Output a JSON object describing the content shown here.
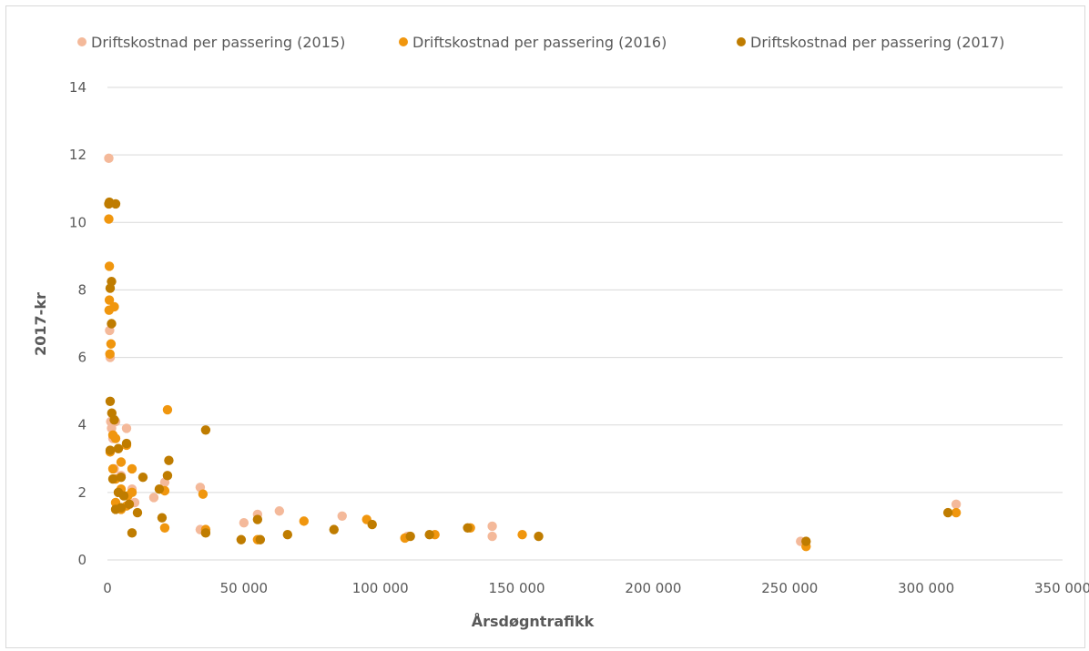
{
  "chart_data": {
    "type": "scatter",
    "xlabel": "Årsdøgntrafikk",
    "ylabel": "2017-kr",
    "xlim": [
      0,
      350000
    ],
    "ylim": [
      0,
      14
    ],
    "x_ticks": [
      0,
      50000,
      100000,
      150000,
      200000,
      250000,
      300000,
      350000
    ],
    "x_tick_labels": [
      "0",
      "50 000",
      "100 000",
      "150 000",
      "200 000",
      "250 000",
      "300 000",
      "350 000"
    ],
    "y_ticks": [
      0,
      2,
      4,
      6,
      8,
      10,
      12,
      14
    ],
    "y_tick_labels": [
      "0",
      "2",
      "4",
      "6",
      "8",
      "10",
      "12",
      "14"
    ],
    "grid": "horizontal",
    "legend_position": "top",
    "series": [
      {
        "name": "Driftskostnad per passering (2015)",
        "color": "#f4b99a",
        "points": [
          [
            500,
            11.9
          ],
          [
            800,
            6.8
          ],
          [
            1000,
            6.0
          ],
          [
            1200,
            4.1
          ],
          [
            1500,
            3.9
          ],
          [
            2000,
            3.6
          ],
          [
            3000,
            4.1
          ],
          [
            4000,
            3.3
          ],
          [
            7000,
            3.9
          ],
          [
            2500,
            2.7
          ],
          [
            5000,
            2.5
          ],
          [
            9000,
            2.1
          ],
          [
            10000,
            1.7
          ],
          [
            17000,
            1.85
          ],
          [
            21000,
            2.3
          ],
          [
            34000,
            2.15
          ],
          [
            34000,
            0.9
          ],
          [
            50000,
            1.1
          ],
          [
            55000,
            1.35
          ],
          [
            63000,
            1.45
          ],
          [
            86000,
            1.3
          ],
          [
            110000,
            0.7
          ],
          [
            141000,
            1.0
          ],
          [
            141000,
            0.7
          ],
          [
            254000,
            0.55
          ],
          [
            311000,
            1.65
          ]
        ]
      },
      {
        "name": "Driftskostnad per passering (2016)",
        "color": "#f0960e",
        "points": [
          [
            500,
            10.1
          ],
          [
            700,
            8.7
          ],
          [
            600,
            7.4
          ],
          [
            700,
            7.7
          ],
          [
            900,
            6.1
          ],
          [
            1300,
            6.4
          ],
          [
            2500,
            7.5
          ],
          [
            1000,
            3.2
          ],
          [
            2000,
            3.7
          ],
          [
            3000,
            3.6
          ],
          [
            5000,
            2.9
          ],
          [
            7000,
            3.4
          ],
          [
            9000,
            2.7
          ],
          [
            2000,
            2.7
          ],
          [
            3000,
            2.4
          ],
          [
            5000,
            2.1
          ],
          [
            7500,
            1.9
          ],
          [
            3000,
            1.7
          ],
          [
            5000,
            1.5
          ],
          [
            7000,
            1.6
          ],
          [
            9000,
            2.0
          ],
          [
            21000,
            2.05
          ],
          [
            22000,
            4.45
          ],
          [
            21000,
            0.95
          ],
          [
            35000,
            1.95
          ],
          [
            36000,
            0.9
          ],
          [
            55000,
            0.6
          ],
          [
            72000,
            1.15
          ],
          [
            95000,
            1.2
          ],
          [
            109000,
            0.65
          ],
          [
            120000,
            0.75
          ],
          [
            133000,
            0.95
          ],
          [
            152000,
            0.75
          ],
          [
            256000,
            0.4
          ],
          [
            311000,
            1.4
          ]
        ]
      },
      {
        "name": "Driftskostnad per passering (2017)",
        "color": "#bf7c00",
        "points": [
          [
            500,
            10.55
          ],
          [
            700,
            10.6
          ],
          [
            3000,
            10.55
          ],
          [
            1000,
            8.05
          ],
          [
            1500,
            8.25
          ],
          [
            1500,
            7.0
          ],
          [
            1000,
            4.7
          ],
          [
            1600,
            4.35
          ],
          [
            2500,
            4.15
          ],
          [
            1000,
            3.25
          ],
          [
            2000,
            2.4
          ],
          [
            4000,
            3.3
          ],
          [
            5000,
            2.45
          ],
          [
            7000,
            3.45
          ],
          [
            4000,
            2.0
          ],
          [
            6000,
            1.9
          ],
          [
            8000,
            1.65
          ],
          [
            3000,
            1.5
          ],
          [
            5000,
            1.55
          ],
          [
            9000,
            0.8
          ],
          [
            11000,
            1.4
          ],
          [
            13000,
            2.45
          ],
          [
            19000,
            2.1
          ],
          [
            20000,
            1.25
          ],
          [
            22000,
            2.5
          ],
          [
            22500,
            2.95
          ],
          [
            36000,
            3.85
          ],
          [
            36000,
            0.8
          ],
          [
            49000,
            0.6
          ],
          [
            55000,
            1.2
          ],
          [
            56000,
            0.6
          ],
          [
            66000,
            0.75
          ],
          [
            83000,
            0.9
          ],
          [
            97000,
            1.05
          ],
          [
            111000,
            0.7
          ],
          [
            118000,
            0.75
          ],
          [
            132000,
            0.95
          ],
          [
            158000,
            0.7
          ],
          [
            256000,
            0.55
          ],
          [
            308000,
            1.4
          ]
        ]
      }
    ]
  }
}
